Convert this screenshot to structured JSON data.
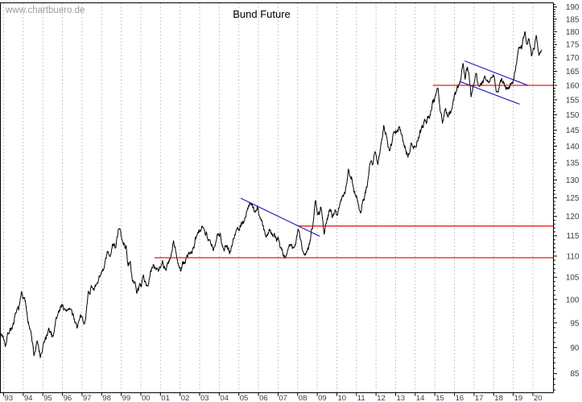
{
  "watermark": "www.chartbuero.de",
  "title": "Bund Future",
  "colors": {
    "background": "#ffffff",
    "price": "#000000",
    "resistance": "#e80000",
    "trend": "#2222bb",
    "grid": "#b5b5b5",
    "axis": "#000000",
    "label": "#3a3a4e",
    "watermark": "#9b9b9b",
    "title": "#000000"
  },
  "chart_data": {
    "type": "line",
    "title": "Bund Future",
    "xlabel": "",
    "ylabel": "",
    "x_axis": {
      "start_year": 1993,
      "end_year": 2020,
      "labels": [
        "93",
        "94",
        "95",
        "96",
        "97",
        "98",
        "99",
        "00",
        "01",
        "02",
        "03",
        "04",
        "05",
        "06",
        "07",
        "08",
        "09",
        "10",
        "11",
        "12",
        "13",
        "14",
        "15",
        "16",
        "17",
        "18",
        "19",
        "20"
      ],
      "grid": "vertical-dashed"
    },
    "y_axis": {
      "side": "right",
      "scale": "log",
      "min": 85,
      "max": 190,
      "tick_step": 5,
      "minor_tick_step": 1,
      "labels": [
        "190",
        "185",
        "180",
        "175",
        "170",
        "165",
        "160",
        "155",
        "150",
        "145",
        "140",
        "135",
        "130",
        "125",
        "120",
        "115",
        "110",
        "105",
        "100",
        "95",
        "90",
        "85"
      ]
    },
    "series": [
      {
        "name": "Bund Future price",
        "color": "#000000",
        "anchors": [
          [
            1992.85,
            92.8
          ],
          [
            1993.0,
            92.3
          ],
          [
            1993.1,
            91.2
          ],
          [
            1993.3,
            93.6
          ],
          [
            1993.5,
            94.6
          ],
          [
            1993.65,
            96.0
          ],
          [
            1993.8,
            98.0
          ],
          [
            1993.92,
            100.8
          ],
          [
            1994.1,
            98.2
          ],
          [
            1994.3,
            94.5
          ],
          [
            1994.45,
            91.0
          ],
          [
            1994.55,
            88.0
          ],
          [
            1994.7,
            90.2
          ],
          [
            1994.9,
            87.4
          ],
          [
            1995.1,
            90.5
          ],
          [
            1995.35,
            92.4
          ],
          [
            1995.5,
            91.8
          ],
          [
            1995.65,
            95.2
          ],
          [
            1995.8,
            97.2
          ],
          [
            1996.0,
            99.6
          ],
          [
            1996.15,
            97.0
          ],
          [
            1996.35,
            98.2
          ],
          [
            1996.55,
            96.0
          ],
          [
            1996.75,
            94.6
          ],
          [
            1996.95,
            95.4
          ],
          [
            1997.1,
            94.4
          ],
          [
            1997.33,
            101.3
          ],
          [
            1997.5,
            103.0
          ],
          [
            1997.6,
            103.6
          ],
          [
            1997.74,
            102.1
          ],
          [
            1997.95,
            106.2
          ],
          [
            1998.08,
            105.0
          ],
          [
            1998.29,
            109.6
          ],
          [
            1998.43,
            108.4
          ],
          [
            1998.56,
            113.2
          ],
          [
            1998.7,
            112.0
          ],
          [
            1998.88,
            117.1
          ],
          [
            1999.09,
            112.6
          ],
          [
            1999.25,
            111.7
          ],
          [
            1999.35,
            108.3
          ],
          [
            1999.48,
            107.0
          ],
          [
            1999.59,
            103.9
          ],
          [
            1999.8,
            101.8
          ],
          [
            1999.97,
            103.3
          ],
          [
            2000.15,
            104.8
          ],
          [
            2000.35,
            103.8
          ],
          [
            2000.6,
            107.2
          ],
          [
            2000.9,
            106.9
          ],
          [
            2001.1,
            108.4
          ],
          [
            2001.3,
            106.6
          ],
          [
            2001.5,
            108.0
          ],
          [
            2001.66,
            112.2
          ],
          [
            2001.85,
            109.0
          ],
          [
            2002.05,
            106.4
          ],
          [
            2002.3,
            109.0
          ],
          [
            2002.5,
            110.9
          ],
          [
            2002.7,
            111.5
          ],
          [
            2002.85,
            114.2
          ],
          [
            2003.0,
            115.5
          ],
          [
            2003.2,
            118.0
          ],
          [
            2003.4,
            115.0
          ],
          [
            2003.55,
            113.3
          ],
          [
            2003.7,
            111.2
          ],
          [
            2003.9,
            114.0
          ],
          [
            2004.05,
            115.1
          ],
          [
            2004.2,
            113.1
          ],
          [
            2004.4,
            112.6
          ],
          [
            2004.55,
            112.0
          ],
          [
            2004.7,
            114.4
          ],
          [
            2004.85,
            116.5
          ],
          [
            2005.0,
            117.4
          ],
          [
            2005.25,
            119.6
          ],
          [
            2005.55,
            123.7
          ],
          [
            2005.75,
            121.5
          ],
          [
            2005.95,
            122.5
          ],
          [
            2006.15,
            119.0
          ],
          [
            2006.4,
            114.6
          ],
          [
            2006.6,
            117.2
          ],
          [
            2006.8,
            115.8
          ],
          [
            2007.0,
            115.0
          ],
          [
            2007.15,
            112.6
          ],
          [
            2007.4,
            109.7
          ],
          [
            2007.6,
            112.9
          ],
          [
            2007.75,
            111.3
          ],
          [
            2007.9,
            113.6
          ],
          [
            2008.06,
            116.9
          ],
          [
            2008.2,
            112.1
          ],
          [
            2008.35,
            109.5
          ],
          [
            2008.5,
            111.8
          ],
          [
            2008.63,
            114.0
          ],
          [
            2008.78,
            118.5
          ],
          [
            2008.9,
            125.1
          ],
          [
            2009.05,
            121.6
          ],
          [
            2009.2,
            123.4
          ],
          [
            2009.35,
            117.7
          ],
          [
            2009.5,
            120.0
          ],
          [
            2009.62,
            121.8
          ],
          [
            2009.8,
            119.8
          ],
          [
            2010.0,
            121.0
          ],
          [
            2010.25,
            124.2
          ],
          [
            2010.45,
            128.6
          ],
          [
            2010.6,
            133.6
          ],
          [
            2010.75,
            131.4
          ],
          [
            2010.9,
            127.0
          ],
          [
            2011.1,
            124.0
          ],
          [
            2011.2,
            121.9
          ],
          [
            2011.4,
            126.0
          ],
          [
            2011.55,
            129.6
          ],
          [
            2011.7,
            137.6
          ],
          [
            2011.8,
            134.6
          ],
          [
            2011.95,
            137.9
          ],
          [
            2012.1,
            135.8
          ],
          [
            2012.25,
            140.5
          ],
          [
            2012.4,
            145.6
          ],
          [
            2012.55,
            141.6
          ],
          [
            2012.68,
            138.4
          ],
          [
            2012.85,
            142.4
          ],
          [
            2013.0,
            143.0
          ],
          [
            2013.15,
            145.5
          ],
          [
            2013.35,
            141.6
          ],
          [
            2013.5,
            139.6
          ],
          [
            2013.62,
            137.5
          ],
          [
            2013.8,
            139.8
          ],
          [
            2013.95,
            139.0
          ],
          [
            2014.15,
            141.5
          ],
          [
            2014.4,
            145.0
          ],
          [
            2014.6,
            147.8
          ],
          [
            2014.8,
            151.4
          ],
          [
            2015.0,
            155.4
          ],
          [
            2015.13,
            159.7
          ],
          [
            2015.28,
            153.0
          ],
          [
            2015.4,
            148.8
          ],
          [
            2015.55,
            153.2
          ],
          [
            2015.7,
            151.0
          ],
          [
            2015.85,
            151.6
          ],
          [
            2016.0,
            157.4
          ],
          [
            2016.15,
            160.4
          ],
          [
            2016.3,
            163.4
          ],
          [
            2016.45,
            168.2
          ],
          [
            2016.55,
            163.6
          ],
          [
            2016.68,
            166.7
          ],
          [
            2016.85,
            157.0
          ],
          [
            2017.0,
            161.0
          ],
          [
            2017.08,
            164.3
          ],
          [
            2017.25,
            160.4
          ],
          [
            2017.4,
            160.1
          ],
          [
            2017.55,
            163.7
          ],
          [
            2017.7,
            162.0
          ],
          [
            2017.85,
            162.7
          ],
          [
            2018.0,
            163.3
          ],
          [
            2018.13,
            158.3
          ],
          [
            2018.35,
            162.5
          ],
          [
            2018.5,
            160.5
          ],
          [
            2018.7,
            158.0
          ],
          [
            2018.85,
            160.0
          ],
          [
            2019.0,
            162.7
          ],
          [
            2019.17,
            168.7
          ],
          [
            2019.33,
            174.4
          ],
          [
            2019.44,
            173.8
          ],
          [
            2019.6,
            179.0
          ],
          [
            2019.72,
            173.6
          ],
          [
            2019.8,
            176.3
          ],
          [
            2019.95,
            170.4
          ],
          [
            2020.08,
            174.4
          ],
          [
            2020.17,
            178.2
          ],
          [
            2020.3,
            172.2
          ],
          [
            2020.45,
            171.8
          ]
        ]
      }
    ],
    "support_resistance_lines": [
      {
        "name": "support-110",
        "value": 109.6,
        "from_year": 2000.7,
        "to_axis": true,
        "color": "#e80000"
      },
      {
        "name": "resistance-117",
        "value": 117.5,
        "from_year": 2008.0,
        "to_axis": true,
        "color": "#e80000"
      },
      {
        "name": "resistance-160",
        "value": 160.0,
        "from_year": 2014.9,
        "to_axis": true,
        "color": "#e80000"
      },
      {
        "name": "downtrend-2005-2009",
        "from": [
          2005.09,
          124.9
        ],
        "to": [
          2009.12,
          114.9
        ],
        "color": "#2222bb"
      },
      {
        "name": "wedge-upper-2016-2019",
        "from": [
          2016.52,
          168.8
        ],
        "to": [
          2019.74,
          160.0
        ],
        "color": "#2222bb"
      },
      {
        "name": "wedge-lower-2016-2019",
        "from": [
          2016.25,
          161.4
        ],
        "to": [
          2019.33,
          153.5
        ],
        "color": "#2222bb"
      }
    ]
  }
}
